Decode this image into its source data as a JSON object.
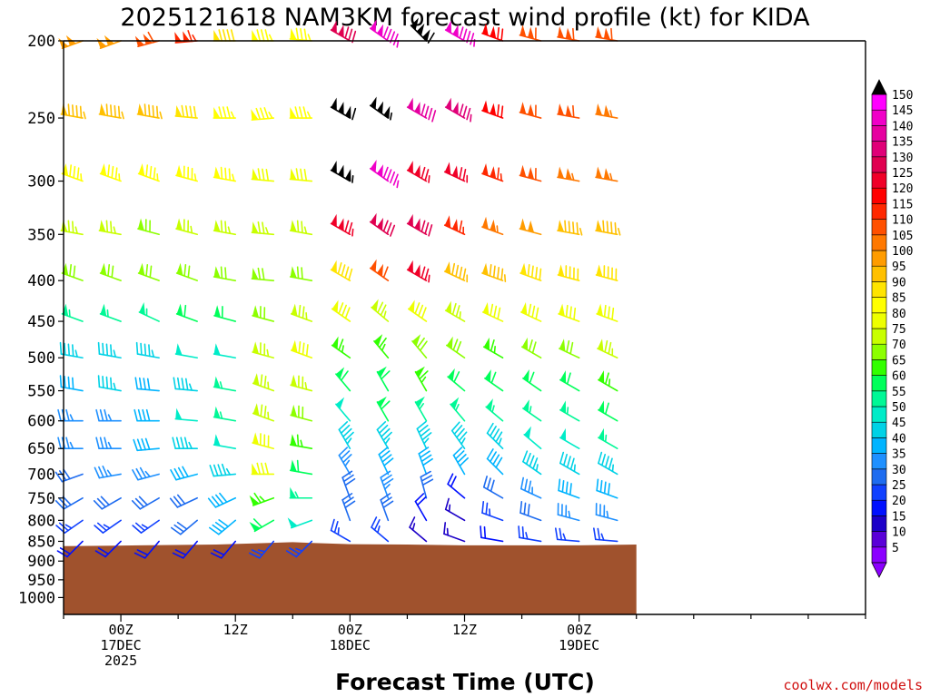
{
  "chart_data": {
    "type": "wind_barb_time_height",
    "title": "2025121618 NAM3KM forecast wind profile (kt) for KIDA",
    "xlabel": "Forecast Time (UTC)",
    "ylabel": "",
    "y_axis": {
      "scale": "log",
      "units": "hPa",
      "reversed": true,
      "range": [
        200,
        1050
      ],
      "ticks": [
        200,
        250,
        300,
        350,
        400,
        450,
        500,
        550,
        600,
        650,
        700,
        750,
        800,
        850,
        900,
        950,
        1000
      ]
    },
    "x_axis": {
      "range_hours": [
        0,
        84
      ],
      "tick_labels": [
        {
          "hour": 6,
          "lines": [
            "00Z",
            "17DEC",
            "2025"
          ]
        },
        {
          "hour": 18,
          "lines": [
            "12Z"
          ]
        },
        {
          "hour": 30,
          "lines": [
            "00Z",
            "18DEC"
          ]
        },
        {
          "hour": 42,
          "lines": [
            "12Z"
          ]
        },
        {
          "hour": 54,
          "lines": [
            "00Z",
            "19DEC"
          ]
        }
      ]
    },
    "levels": [
      200,
      250,
      300,
      350,
      400,
      450,
      500,
      550,
      600,
      650,
      700,
      750,
      800,
      850
    ],
    "surface_pressure": {
      "hours": [
        0,
        8,
        16,
        20,
        24,
        26,
        30,
        36,
        42,
        48,
        54,
        60
      ],
      "hpa": [
        862,
        860,
        858,
        855,
        852,
        854,
        857,
        858,
        860,
        860,
        860,
        858
      ]
    },
    "terrain_color": "#a0522d",
    "legend": {
      "position": "right",
      "type": "colorbar",
      "title": "",
      "levels": [
        5,
        10,
        15,
        20,
        25,
        30,
        35,
        40,
        45,
        50,
        55,
        60,
        65,
        70,
        75,
        80,
        85,
        90,
        95,
        100,
        105,
        110,
        115,
        120,
        125,
        130,
        135,
        140,
        145,
        150
      ],
      "colors": [
        "#8b00ff",
        "#5a00d8",
        "#1c00c8",
        "#0010ff",
        "#1040ff",
        "#1e6cf0",
        "#1e90ff",
        "#00b4ff",
        "#00d2e6",
        "#00ecc8",
        "#00f896",
        "#00ff5a",
        "#32ff00",
        "#8cff00",
        "#c8ff00",
        "#eeff00",
        "#ffff00",
        "#ffe400",
        "#ffc000",
        "#ff9c00",
        "#ff7800",
        "#ff5000",
        "#ff2800",
        "#ff0000",
        "#f00028",
        "#e00050",
        "#e00078",
        "#e600a0",
        "#f000c8",
        "#ff00ff"
      ],
      "over_color": "#000000"
    },
    "series": [
      {
        "hour": 2,
        "dir": [
          250,
          280,
          290,
          280,
          290,
          290,
          280,
          280,
          270,
          270,
          250,
          240,
          235,
          225
        ],
        "spd": [
          100,
          95,
          85,
          75,
          70,
          55,
          45,
          40,
          35,
          35,
          30,
          30,
          25,
          20
        ]
      },
      {
        "hour": 6,
        "dir": [
          250,
          280,
          290,
          280,
          290,
          290,
          280,
          280,
          270,
          270,
          260,
          240,
          235,
          225
        ],
        "spd": [
          100,
          95,
          85,
          75,
          70,
          55,
          45,
          45,
          35,
          35,
          35,
          30,
          25,
          20
        ]
      },
      {
        "hour": 10,
        "dir": [
          255,
          280,
          290,
          285,
          290,
          295,
          280,
          275,
          270,
          265,
          255,
          240,
          235,
          220
        ],
        "spd": [
          110,
          95,
          85,
          70,
          70,
          55,
          45,
          40,
          40,
          40,
          35,
          30,
          25,
          20
        ]
      },
      {
        "hour": 14,
        "dir": [
          265,
          275,
          285,
          285,
          290,
          290,
          280,
          275,
          275,
          270,
          255,
          245,
          230,
          220
        ],
        "spd": [
          115,
          90,
          85,
          75,
          70,
          60,
          50,
          45,
          50,
          45,
          40,
          30,
          30,
          20
        ]
      },
      {
        "hour": 18,
        "dir": [
          270,
          270,
          280,
          280,
          280,
          285,
          280,
          280,
          280,
          280,
          265,
          245,
          230,
          220
        ],
        "spd": [
          90,
          85,
          85,
          75,
          70,
          60,
          50,
          55,
          55,
          50,
          45,
          40,
          40,
          20
        ]
      },
      {
        "hour": 22,
        "dir": [
          270,
          265,
          275,
          275,
          275,
          285,
          285,
          290,
          290,
          285,
          270,
          250,
          240,
          220
        ],
        "spd": [
          85,
          85,
          80,
          75,
          70,
          70,
          75,
          75,
          75,
          80,
          80,
          65,
          60,
          25
        ]
      },
      {
        "hour": 26,
        "dir": [
          275,
          270,
          275,
          280,
          280,
          290,
          290,
          285,
          285,
          280,
          280,
          270,
          250,
          225
        ],
        "spd": [
          85,
          85,
          80,
          75,
          70,
          75,
          80,
          75,
          70,
          65,
          60,
          55,
          50,
          25
        ]
      },
      {
        "hour": 30,
        "dir": [
          300,
          300,
          300,
          300,
          300,
          305,
          305,
          320,
          320,
          330,
          330,
          340,
          340,
          300
        ],
        "spd": [
          130,
          160,
          155,
          125,
          90,
          80,
          65,
          60,
          50,
          45,
          35,
          30,
          30,
          25
        ]
      },
      {
        "hour": 34,
        "dir": [
          305,
          305,
          305,
          305,
          305,
          310,
          320,
          330,
          330,
          330,
          335,
          340,
          340,
          310
        ],
        "spd": [
          145,
          155,
          145,
          130,
          110,
          75,
          65,
          60,
          60,
          45,
          40,
          35,
          30,
          25
        ]
      },
      {
        "hour": 38,
        "dir": [
          315,
          300,
          300,
          300,
          300,
          305,
          320,
          330,
          330,
          335,
          340,
          345,
          330,
          310
        ],
        "spd": [
          160,
          140,
          125,
          130,
          125,
          80,
          70,
          65,
          55,
          45,
          40,
          30,
          20,
          15
        ]
      },
      {
        "hour": 42,
        "dir": [
          300,
          300,
          295,
          295,
          295,
          300,
          305,
          310,
          320,
          325,
          330,
          310,
          300,
          290
        ],
        "spd": [
          145,
          135,
          125,
          115,
          95,
          75,
          70,
          60,
          55,
          45,
          40,
          20,
          15,
          15
        ]
      },
      {
        "hour": 46,
        "dir": [
          290,
          290,
          290,
          290,
          290,
          295,
          300,
          305,
          310,
          315,
          315,
          300,
          290,
          280
        ],
        "spd": [
          120,
          120,
          115,
          105,
          95,
          80,
          65,
          60,
          55,
          45,
          40,
          30,
          25,
          20
        ]
      },
      {
        "hour": 50,
        "dir": [
          285,
          285,
          285,
          285,
          290,
          295,
          300,
          305,
          305,
          310,
          305,
          295,
          290,
          280
        ],
        "spd": [
          110,
          110,
          110,
          100,
          90,
          80,
          70,
          60,
          55,
          50,
          45,
          35,
          30,
          25
        ]
      },
      {
        "hour": 54,
        "dir": [
          280,
          280,
          280,
          280,
          285,
          290,
          295,
          300,
          300,
          300,
          300,
          290,
          285,
          275
        ],
        "spd": [
          110,
          110,
          105,
          95,
          90,
          80,
          70,
          60,
          55,
          50,
          45,
          40,
          35,
          25
        ]
      },
      {
        "hour": 58,
        "dir": [
          280,
          280,
          280,
          280,
          285,
          290,
          295,
          300,
          300,
          300,
          300,
          290,
          285,
          275
        ],
        "spd": [
          110,
          105,
          105,
          95,
          90,
          80,
          75,
          65,
          60,
          55,
          45,
          40,
          35,
          25
        ]
      }
    ]
  },
  "credit": "coolwx.com/models"
}
